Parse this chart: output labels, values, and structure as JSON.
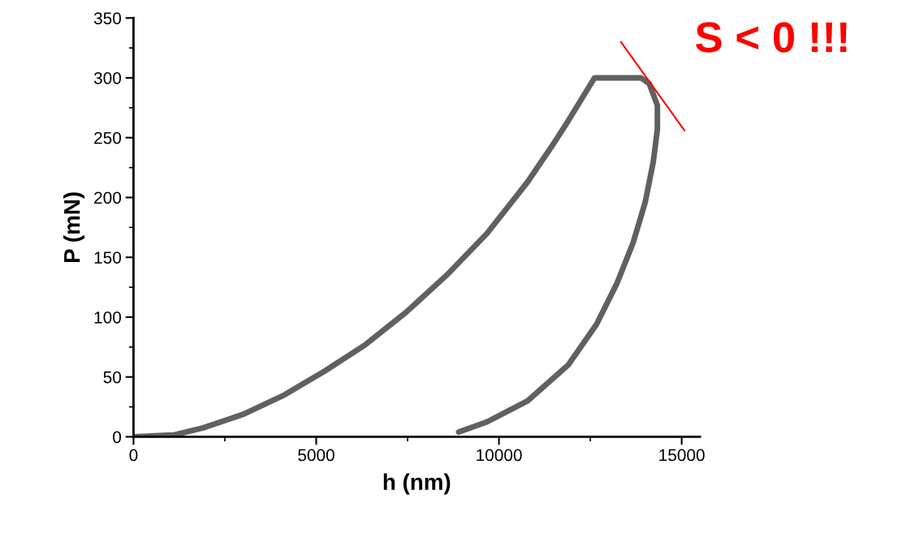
{
  "chart_data": {
    "type": "line",
    "xlabel": "h (nm)",
    "ylabel": "P (mN)",
    "series": [
      {
        "color": "#606060",
        "x": [
          0,
          1132,
          1908,
          3018,
          4127,
          5237,
          6346,
          7456,
          8566,
          9675,
          10784,
          11450,
          11894,
          12615,
          13890,
          14113,
          14335,
          14335,
          14224,
          14002,
          13669,
          13225,
          12670,
          11894,
          10784,
          9675,
          8898
        ],
        "values": [
          0,
          1.7,
          7.5,
          19,
          35,
          55,
          77,
          104,
          135,
          170,
          213,
          243,
          264,
          300,
          300,
          295,
          277,
          257,
          230,
          196,
          162,
          128,
          94,
          60,
          30,
          12.5,
          4
        ]
      },
      {
        "color": "#ff0000",
        "x": [
          13336,
          15078
        ],
        "values": [
          330,
          256
        ]
      }
    ],
    "annotations": [
      "S < 0 !!!"
    ],
    "xlim": [
      0,
      15500
    ],
    "ylim": [
      0,
      350
    ],
    "xticks": [
      0,
      {
        "value": 2500,
        "label": null
      },
      5000,
      {
        "value": 7500,
        "label": null
      },
      10000,
      {
        "value": 12500,
        "label": null
      },
      15000
    ],
    "yticks": [
      0,
      {
        "value": 25,
        "label": null
      },
      50,
      {
        "value": 75,
        "label": null
      },
      100,
      {
        "value": 125,
        "label": null
      },
      150,
      {
        "value": 175,
        "label": null
      },
      200,
      {
        "value": 225,
        "label": null
      },
      250,
      {
        "value": 275,
        "label": null
      },
      300,
      {
        "value": 325,
        "label": null
      },
      350
    ],
    "grid": false,
    "legend": false
  }
}
